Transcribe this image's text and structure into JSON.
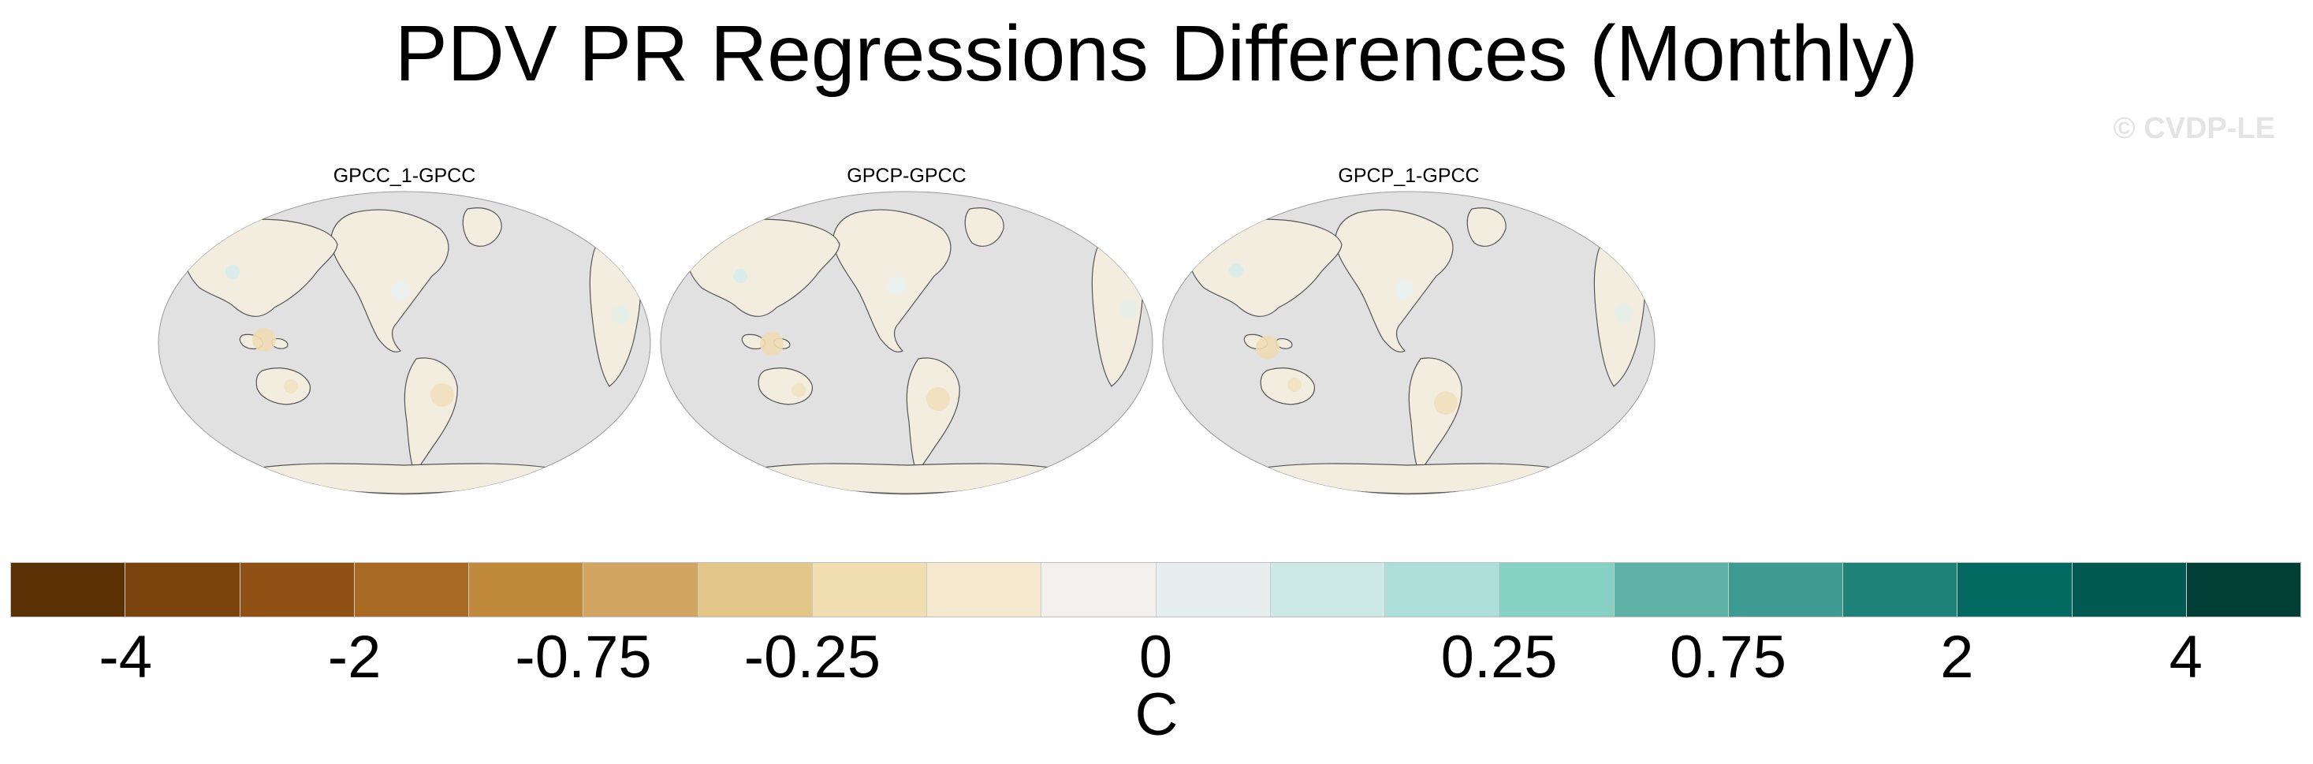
{
  "title": "PDV PR Regressions Differences (Monthly)",
  "watermark": "© CVDP-LE",
  "panels": [
    {
      "title": "GPCC_1-GPCC"
    },
    {
      "title": "GPCP-GPCC"
    },
    {
      "title": "GPCP_1-GPCC"
    }
  ],
  "colorbar": {
    "colors": [
      "#5a3005",
      "#7a420c",
      "#8f5214",
      "#a86a22",
      "#c08a3a",
      "#d2a560",
      "#e3c68a",
      "#f0ddb0",
      "#f4e9cf",
      "#f3f1ed",
      "#e6efed",
      "#cde9e5",
      "#acdfd8",
      "#86d0c4",
      "#5fb2a6",
      "#3e9b91",
      "#1f8279",
      "#036a62",
      "#005a51",
      "#013e35"
    ],
    "tick_labels": [
      "-4",
      "-2",
      "-0.75",
      "-0.25",
      "0",
      "0.25",
      "0.75",
      "2",
      "4"
    ],
    "unit": "C"
  },
  "map_style": {
    "ocean": "#e1e1e1",
    "land": "#f3ede0",
    "coast": "#555555"
  }
}
